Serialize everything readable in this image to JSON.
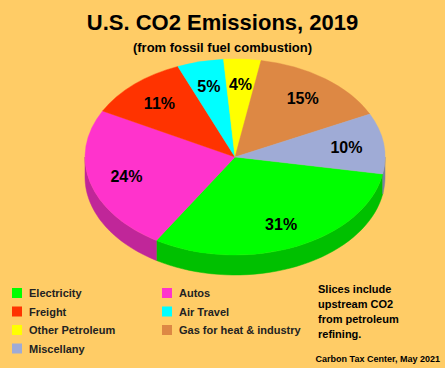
{
  "chart_data": {
    "type": "pie",
    "title": "U.S. CO2 Emissions, 2019",
    "subtitle": "(from fossil fuel combustion)",
    "categories": [
      "Electricity",
      "Autos",
      "Freight",
      "Air Travel",
      "Other Petroleum",
      "Gas for heat & industry",
      "Miscellany"
    ],
    "values": [
      31,
      24,
      11,
      5,
      4,
      15,
      10
    ],
    "value_labels": [
      "31%",
      "24%",
      "11%",
      "5%",
      "4%",
      "15%",
      "10%"
    ],
    "colors": [
      "#00ff00",
      "#ff33cc",
      "#ff3300",
      "#00ffff",
      "#ffff00",
      "#dd8844",
      "#9fabd6"
    ],
    "data_labels": true,
    "legend": "bottom",
    "note": [
      "Slices include",
      "upstream CO2",
      "from petroleum",
      "refining."
    ],
    "source": "Carbon Tax Center, May 2021"
  }
}
